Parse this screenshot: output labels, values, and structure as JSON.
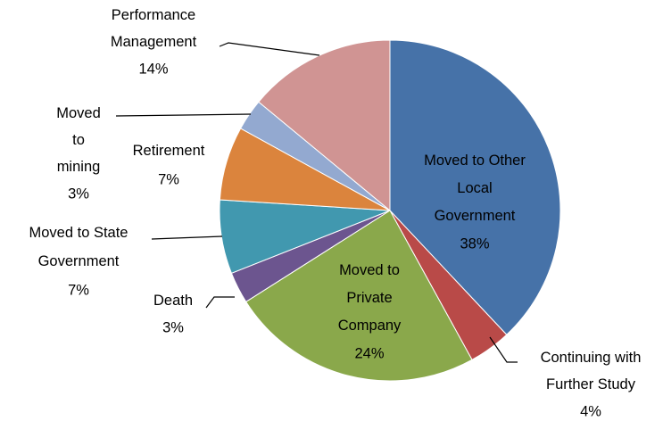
{
  "chart_data": {
    "type": "pie",
    "categories": [
      "Moved to Other Local Government",
      "Continuing with Further Study",
      "Moved to Private Company",
      "Death",
      "Moved to State Government",
      "Retirement",
      "Moved to mining",
      "Performance Management"
    ],
    "values": [
      38,
      4,
      24,
      3,
      7,
      7,
      3,
      14
    ],
    "value_labels": [
      "38%",
      "4%",
      "24%",
      "3%",
      "7%",
      "7%",
      "3%",
      "14%"
    ],
    "colors": [
      "#4672a8",
      "#b94a48",
      "#8aa84b",
      "#6c558f",
      "#4198af",
      "#db843d",
      "#93a9d0",
      "#d09493"
    ]
  }
}
